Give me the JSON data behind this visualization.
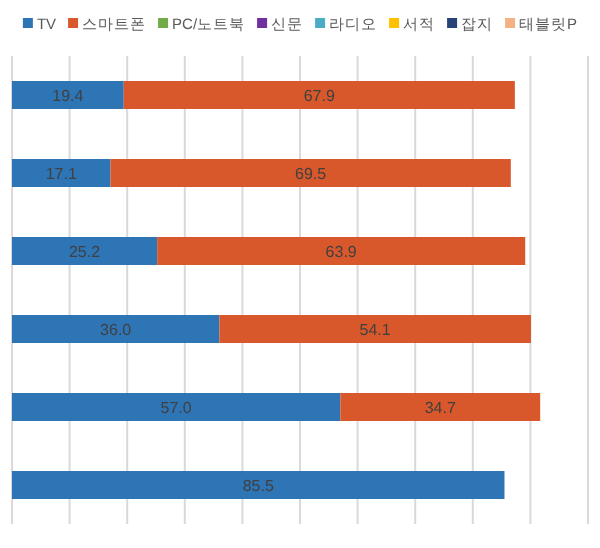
{
  "chart_data": {
    "type": "bar",
    "orientation": "horizontal",
    "stacked": true,
    "categories": [
      null,
      null,
      null,
      null,
      null,
      null
    ],
    "series": [
      {
        "name": "TV",
        "color": "#2e75b6",
        "values": [
          19.4,
          17.1,
          25.2,
          36.0,
          57.0,
          85.5
        ],
        "value_labels": [
          "19.4",
          "17.1",
          "25.2",
          "36.0",
          "57.0",
          "85.5"
        ]
      },
      {
        "name": "스마트폰",
        "color": "#d9582b",
        "values": [
          67.9,
          69.5,
          63.9,
          54.1,
          34.7,
          null
        ],
        "value_labels": [
          "67.9",
          "69.5",
          "63.9",
          "54.1",
          "34.7",
          null
        ]
      },
      {
        "name": "PC/노트북",
        "color": "#70ad47",
        "values": [
          null,
          null,
          null,
          null,
          null,
          null
        ]
      },
      {
        "name": "신문",
        "color": "#7030a0",
        "values": [
          null,
          null,
          null,
          null,
          null,
          null
        ]
      },
      {
        "name": "라디오",
        "color": "#4bacc6",
        "values": [
          null,
          null,
          null,
          null,
          null,
          null
        ]
      },
      {
        "name": "서적",
        "color": "#ffc000",
        "values": [
          null,
          null,
          null,
          null,
          null,
          null
        ]
      },
      {
        "name": "잡지",
        "color": "#264478",
        "values": [
          null,
          null,
          null,
          null,
          null,
          null
        ]
      },
      {
        "name": "태블릿P",
        "color": "#f4b183",
        "values": [
          null,
          null,
          null,
          null,
          null,
          null
        ]
      }
    ],
    "xlim": [
      0,
      100
    ],
    "xticks": [
      {
        "value": 0,
        "label": null
      },
      {
        "value": 10,
        "label": null
      },
      {
        "value": 20,
        "label": null
      },
      {
        "value": 30,
        "label": null
      },
      {
        "value": 40,
        "label": null
      },
      {
        "value": 50,
        "label": null
      },
      {
        "value": 60,
        "label": null
      },
      {
        "value": 70,
        "label": null
      },
      {
        "value": 80,
        "label": null
      },
      {
        "value": 90,
        "label": null
      },
      {
        "value": 100,
        "label": null
      }
    ],
    "grid": "x",
    "legend": "top"
  }
}
